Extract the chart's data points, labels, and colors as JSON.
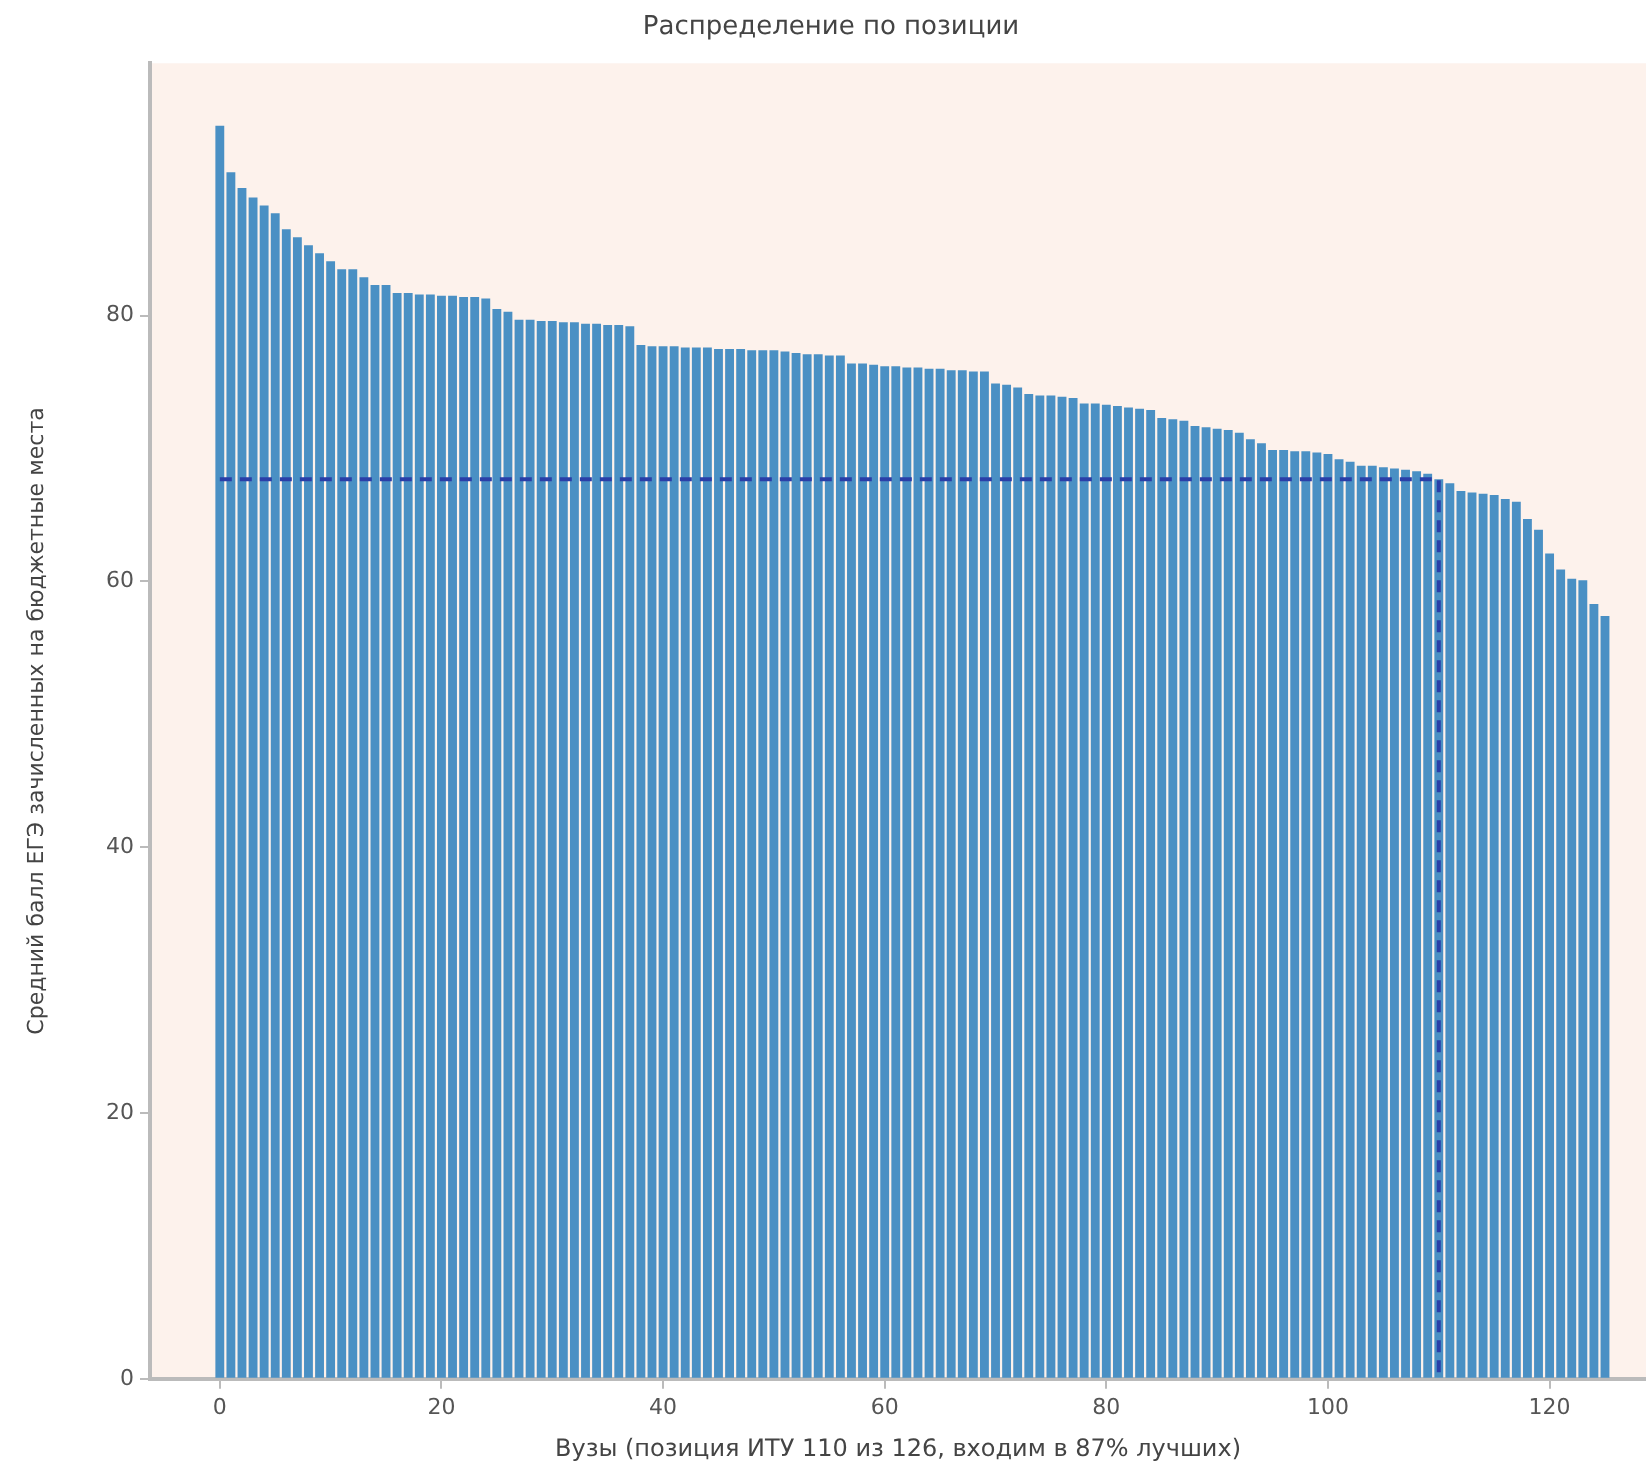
{
  "chart_data": {
    "type": "bar",
    "title": "Распределение по позиции",
    "xlabel": "Вузы (позиция ИТУ 110 из 126, входим в 87% лучших)",
    "ylabel": "Средний балл ЕГЭ зачисленных на бюджетные места",
    "xlim": [
      -6.3,
      128.7
    ],
    "xticks": [
      0,
      20,
      40,
      60,
      80,
      100,
      120
    ],
    "ylim": [
      0,
      99
    ],
    "yticks": [
      0,
      20,
      40,
      60,
      80
    ],
    "grid": false,
    "legend": false,
    "series": [
      {
        "color": "#4a90c4",
        "x": [
          0,
          1,
          2,
          3,
          4,
          5,
          6,
          7,
          8,
          9,
          10,
          11,
          12,
          13,
          14,
          15,
          16,
          17,
          18,
          19,
          20,
          21,
          22,
          23,
          24,
          25,
          26,
          27,
          28,
          29,
          30,
          31,
          32,
          33,
          34,
          35,
          36,
          37,
          38,
          39,
          40,
          41,
          42,
          43,
          44,
          45,
          46,
          47,
          48,
          49,
          50,
          51,
          52,
          53,
          54,
          55,
          56,
          57,
          58,
          59,
          60,
          61,
          62,
          63,
          64,
          65,
          66,
          67,
          68,
          69,
          70,
          71,
          72,
          73,
          74,
          75,
          76,
          77,
          78,
          79,
          80,
          81,
          82,
          83,
          84,
          85,
          86,
          87,
          88,
          89,
          90,
          91,
          92,
          93,
          94,
          95,
          96,
          97,
          98,
          99,
          100,
          101,
          102,
          103,
          104,
          105,
          106,
          107,
          108,
          109,
          110,
          111,
          112,
          113,
          114,
          115,
          116,
          117,
          118,
          119,
          120,
          121,
          122,
          123,
          124,
          125
        ],
        "values": [
          94.3,
          90.8,
          89.6,
          88.9,
          88.3,
          87.7,
          86.5,
          85.9,
          85.3,
          84.7,
          84.1,
          83.5,
          83.5,
          82.9,
          82.3,
          82.3,
          81.7,
          81.7,
          81.6,
          81.6,
          81.5,
          81.5,
          81.4,
          81.4,
          81.3,
          80.5,
          80.3,
          79.7,
          79.7,
          79.6,
          79.6,
          79.5,
          79.5,
          79.4,
          79.4,
          79.3,
          79.3,
          79.2,
          77.8,
          77.7,
          77.7,
          77.7,
          77.6,
          77.6,
          77.6,
          77.5,
          77.5,
          77.5,
          77.4,
          77.4,
          77.4,
          77.3,
          77.2,
          77.1,
          77.1,
          77.0,
          77.0,
          76.4,
          76.4,
          76.3,
          76.2,
          76.2,
          76.1,
          76.1,
          76.0,
          76.0,
          75.9,
          75.9,
          75.8,
          75.8,
          74.9,
          74.8,
          74.6,
          74.1,
          74.0,
          74.0,
          73.9,
          73.8,
          73.4,
          73.4,
          73.3,
          73.2,
          73.1,
          73.0,
          72.9,
          72.3,
          72.2,
          72.1,
          71.7,
          71.6,
          71.5,
          71.4,
          71.2,
          70.7,
          70.4,
          69.9,
          69.9,
          69.8,
          69.8,
          69.7,
          69.6,
          69.2,
          69.0,
          68.7,
          68.7,
          68.6,
          68.5,
          68.4,
          68.3,
          68.1,
          67.7,
          67.4,
          66.8,
          66.7,
          66.6,
          66.5,
          66.2,
          66.0,
          64.7,
          63.9,
          62.1,
          60.9,
          60.2,
          60.1,
          58.3,
          57.4
        ]
      },
      {
        "type": "line",
        "color": "#2a3fa8",
        "line_style": "dashed",
        "marker": "none",
        "x": [
          0,
          110,
          110
        ],
        "values": [
          67.7,
          67.7,
          0
        ]
      }
    ]
  }
}
